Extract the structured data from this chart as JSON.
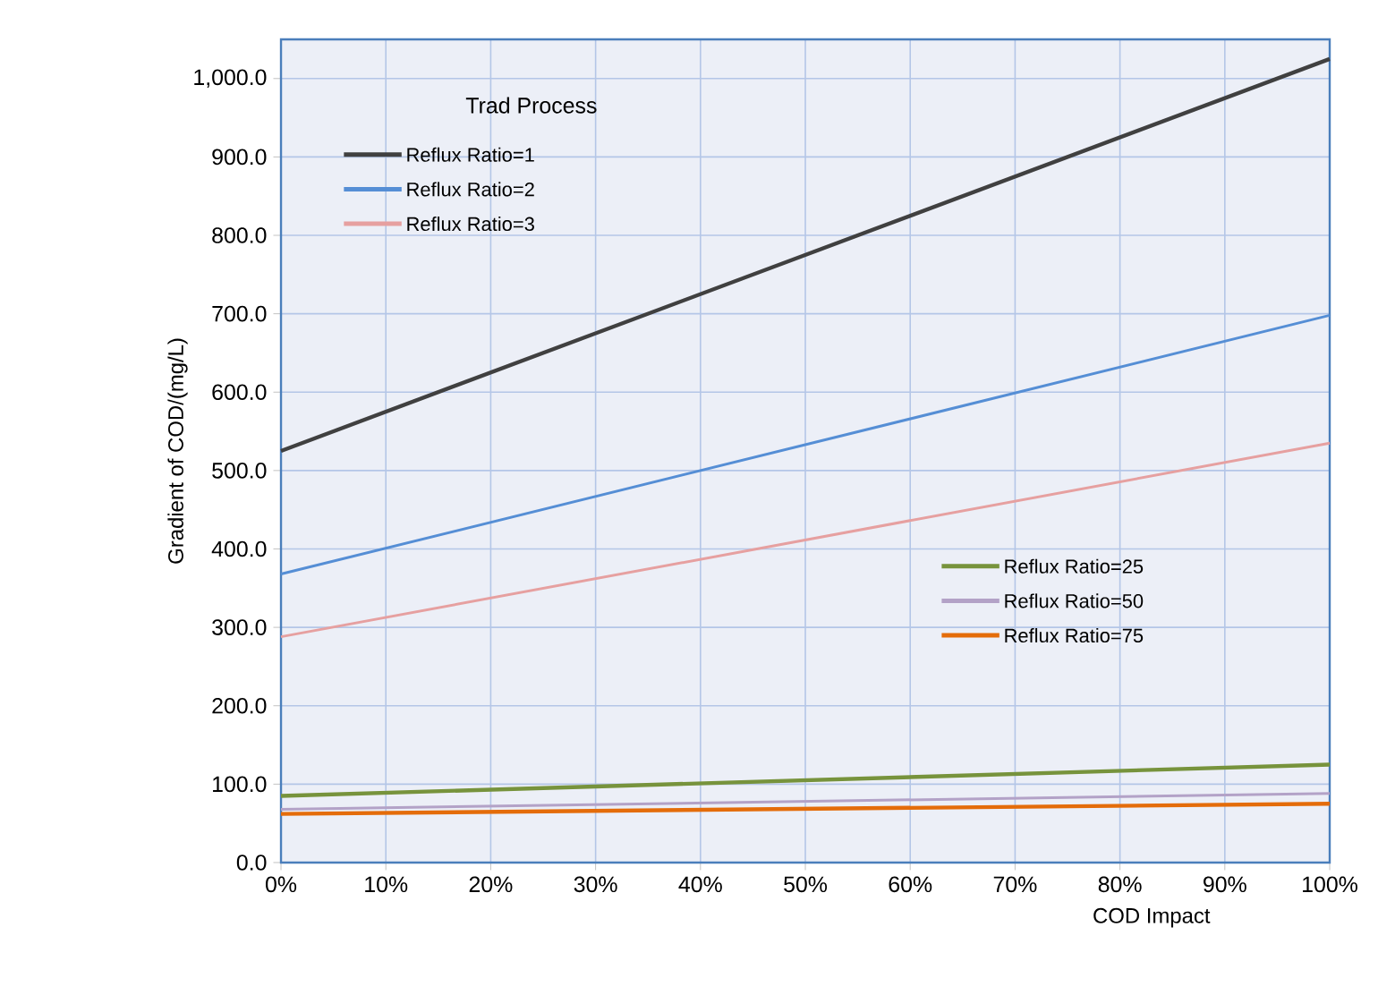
{
  "chart_data": {
    "type": "line",
    "xlabel": "COD Impact",
    "ylabel": "Gradient of COD/(mg/L)",
    "legend_title": "Trad Process",
    "legend": "top left",
    "grid": true,
    "x": [
      0,
      100
    ],
    "xlim": [
      0,
      100
    ],
    "ylim": [
      0,
      1050
    ],
    "xticks": [
      {
        "value": 0,
        "label": "0%"
      },
      {
        "value": 10,
        "label": "10%"
      },
      {
        "value": 20,
        "label": "20%"
      },
      {
        "value": 30,
        "label": "30%"
      },
      {
        "value": 40,
        "label": "40%"
      },
      {
        "value": 50,
        "label": "50%"
      },
      {
        "value": 60,
        "label": "60%"
      },
      {
        "value": 70,
        "label": "70%"
      },
      {
        "value": 80,
        "label": "80%"
      },
      {
        "value": 90,
        "label": "90%"
      },
      {
        "value": 100,
        "label": "100%"
      }
    ],
    "yticks": [
      {
        "value": 0,
        "label": "0.0"
      },
      {
        "value": 100,
        "label": "100.0"
      },
      {
        "value": 200,
        "label": "200.0"
      },
      {
        "value": 300,
        "label": "300.0"
      },
      {
        "value": 400,
        "label": "400.0"
      },
      {
        "value": 500,
        "label": "500.0"
      },
      {
        "value": 600,
        "label": "600.0"
      },
      {
        "value": 700,
        "label": "700.0"
      },
      {
        "value": 800,
        "label": "800.0"
      },
      {
        "value": 900,
        "label": "900.0"
      },
      {
        "value": 1000,
        "label": "1,000.0"
      }
    ],
    "series": [
      {
        "name": "Reflux Ratio=1",
        "color": "#404040",
        "values": [
          525,
          1025
        ]
      },
      {
        "name": "Reflux Ratio=2",
        "color": "#558ed5",
        "values": [
          368,
          698
        ]
      },
      {
        "name": "Reflux Ratio=3",
        "color": "#e6a0a0",
        "values": [
          288,
          535
        ]
      },
      {
        "name": "Reflux Ratio=25",
        "color": "#77933c",
        "values": [
          85,
          125
        ]
      },
      {
        "name": "Reflux Ratio=50",
        "color": "#b3a2c7",
        "values": [
          68,
          88
        ]
      },
      {
        "name": "Reflux Ratio=75",
        "color": "#e46c0a",
        "values": [
          62,
          75
        ]
      }
    ]
  }
}
